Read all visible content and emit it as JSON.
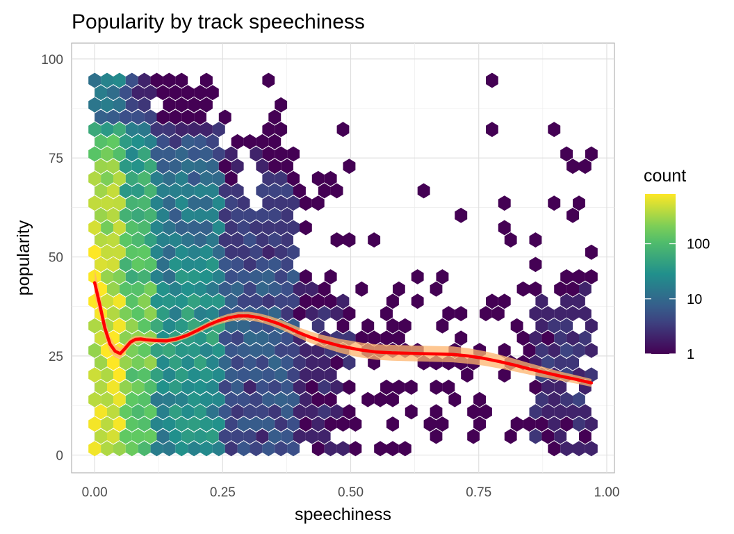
{
  "chart_data": {
    "type": "hexbin",
    "title": "Popularity by track speechiness",
    "xlabel": "speechiness",
    "ylabel": "popularity",
    "xlim": [
      -0.045,
      1.015
    ],
    "ylim": [
      -4.5,
      104
    ],
    "x_ticks": [
      0,
      0.25,
      0.5,
      0.75,
      1
    ],
    "x_tick_labels": [
      "0.00",
      "0.25",
      "0.50",
      "0.75",
      "1.00"
    ],
    "y_ticks": [
      0,
      25,
      50,
      75,
      100
    ],
    "y_tick_labels": [
      "0",
      "25",
      "50",
      "75",
      "100"
    ],
    "grid": true,
    "legend": {
      "title": "count",
      "position": "right",
      "scale": "log10",
      "min": 1,
      "max": 800,
      "breaks": [
        1,
        10,
        100
      ],
      "break_labels": [
        "1",
        "10",
        "100"
      ],
      "colors": [
        "#440154",
        "#3b528b",
        "#21908c",
        "#5dc863",
        "#fde725"
      ]
    },
    "hexbin": {
      "x_bins": 40,
      "x_range": [
        0,
        0.97
      ],
      "y_range": [
        0,
        95
      ],
      "y_bin_height": 3.1,
      "seed": 20240521
    },
    "smooth": {
      "color": "#ff0000",
      "band_color": "#fdb46e",
      "x": [
        0,
        0.01,
        0.02,
        0.03,
        0.04,
        0.05,
        0.06,
        0.07,
        0.08,
        0.09,
        0.1,
        0.12,
        0.14,
        0.16,
        0.18,
        0.2,
        0.22,
        0.24,
        0.26,
        0.28,
        0.3,
        0.32,
        0.34,
        0.36,
        0.38,
        0.4,
        0.42,
        0.44,
        0.46,
        0.48,
        0.5,
        0.52,
        0.55,
        0.58,
        0.61,
        0.64,
        0.67,
        0.7,
        0.73,
        0.76,
        0.79,
        0.82,
        0.85,
        0.88,
        0.91,
        0.94,
        0.97
      ],
      "y": [
        43.5,
        38,
        32,
        28,
        26.2,
        25.6,
        27,
        28.5,
        29.2,
        29.3,
        29.1,
        28.9,
        28.8,
        29.3,
        30.2,
        31.4,
        32.7,
        33.8,
        34.6,
        35.1,
        35.1,
        34.7,
        34.0,
        33.1,
        32.0,
        30.8,
        29.8,
        28.9,
        28.2,
        27.5,
        27.0,
        26.5,
        26.0,
        25.8,
        25.7,
        25.6,
        25.5,
        25.4,
        25.0,
        24.4,
        23.6,
        22.7,
        21.7,
        20.8,
        19.9,
        19.1,
        18.2
      ],
      "se": [
        3.5,
        2.9,
        2.4,
        2.0,
        1.6,
        1.4,
        1.2,
        1.0,
        0.9,
        0.8,
        0.75,
        0.7,
        0.7,
        0.7,
        0.75,
        0.8,
        0.85,
        0.9,
        1.0,
        1.05,
        1.1,
        1.1,
        1.15,
        1.2,
        1.25,
        1.35,
        1.45,
        1.55,
        1.65,
        1.75,
        1.85,
        1.9,
        1.95,
        2.0,
        2.0,
        2.0,
        2.0,
        2.0,
        1.95,
        1.85,
        1.75,
        1.6,
        1.45,
        1.3,
        1.15,
        1.05,
        1.0
      ]
    }
  }
}
